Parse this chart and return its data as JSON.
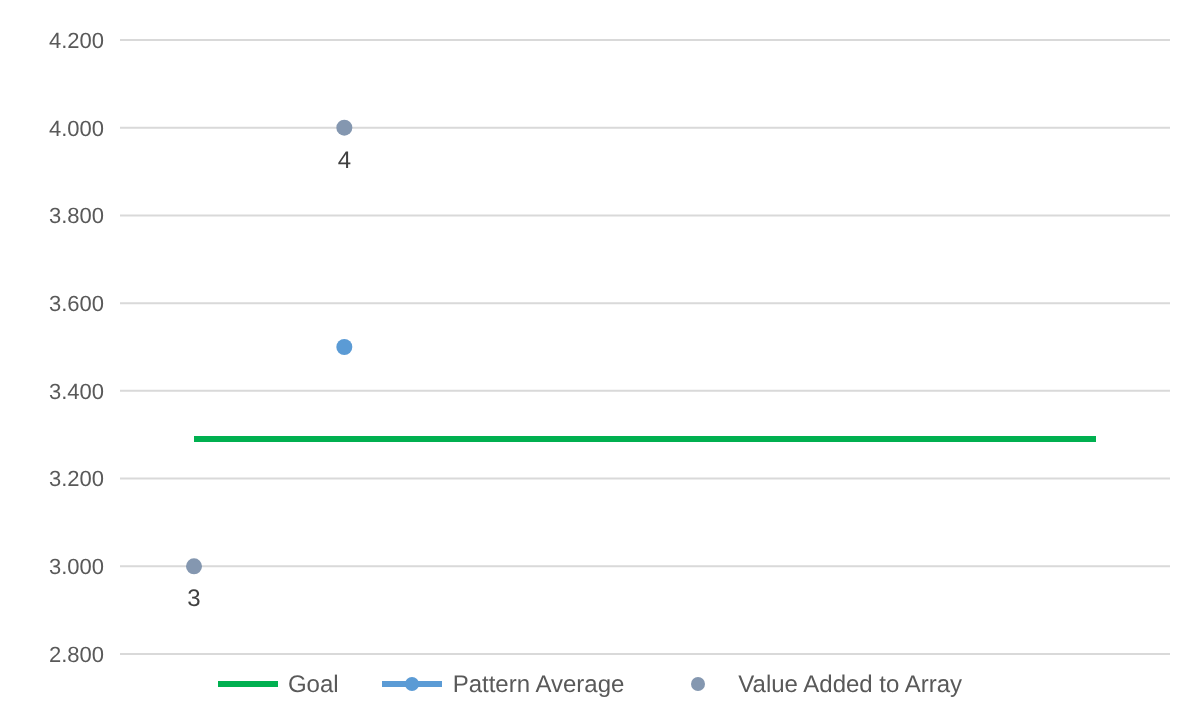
{
  "chart_data": {
    "type": "line",
    "categories": [
      null,
      null,
      null,
      null,
      null,
      null,
      null
    ],
    "series": [
      {
        "name": "Goal",
        "color": "#00b050",
        "marker": "none",
        "values": [
          3.29,
          3.29,
          3.29,
          3.29,
          3.29,
          3.29,
          3.29
        ]
      },
      {
        "name": "Pattern Average",
        "color": "#5b9bd5",
        "marker": "circle",
        "values": [
          null,
          3.5,
          null,
          null,
          null,
          null,
          null
        ]
      },
      {
        "name": "Value Added to Array",
        "type": "scatter",
        "color": "#8497b0",
        "marker": "circle",
        "values": [
          3,
          4,
          null,
          null,
          null,
          null,
          null
        ],
        "value_labels": [
          "3",
          "4",
          null,
          null,
          null,
          null,
          null
        ]
      }
    ],
    "ylim": [
      2.8,
      4.2
    ],
    "yticks": [
      {
        "value": 2.8,
        "label": "2.800"
      },
      {
        "value": 3.0,
        "label": "3.000"
      },
      {
        "value": 3.2,
        "label": "3.200"
      },
      {
        "value": 3.4,
        "label": "3.400"
      },
      {
        "value": 3.6,
        "label": "3.600"
      },
      {
        "value": 3.8,
        "label": "3.800"
      },
      {
        "value": 4.0,
        "label": "4.000"
      },
      {
        "value": 4.2,
        "label": "4.200"
      }
    ],
    "grid": "y",
    "legend": "bottom",
    "tick_labels": "y"
  }
}
